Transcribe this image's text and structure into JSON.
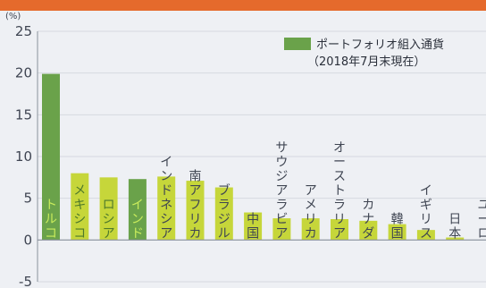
{
  "chart_data": {
    "type": "bar",
    "unit": "(%)",
    "ylim": [
      -5,
      25
    ],
    "yticks": [
      -5,
      0,
      5,
      10,
      15,
      20,
      25
    ],
    "grid": true,
    "legend": {
      "label": "ポートフォリオ組入通貨",
      "note": "（2018年7月末現在）",
      "placement": "top-right"
    },
    "categories": [
      "トルコ",
      "メキシコ",
      "ロシア",
      "インド",
      "インドネシア",
      "南アフリカ",
      "ブラジル",
      "中国",
      "サウジアラビア",
      "アメリカ",
      "オーストラリア",
      "カナダ",
      "韓国",
      "イギリス",
      "日本",
      "ユーロ"
    ],
    "values": [
      19.9,
      8.0,
      7.5,
      7.3,
      7.6,
      7.1,
      6.3,
      3.3,
      2.6,
      2.6,
      2.5,
      2.3,
      1.9,
      1.2,
      0.3,
      0.0
    ],
    "in_portfolio": [
      true,
      false,
      false,
      true,
      false,
      false,
      false,
      false,
      false,
      false,
      false,
      false,
      false,
      false,
      false,
      false
    ],
    "colors": {
      "portfolio": "#6aa24a",
      "other": "#c6d63a",
      "label_on_dark": "#c9ec5c",
      "label_on_light": "#4f7a2a",
      "label_outside": "#3f4552",
      "grid": "#d6d9df",
      "axis": "#8b929d"
    }
  }
}
